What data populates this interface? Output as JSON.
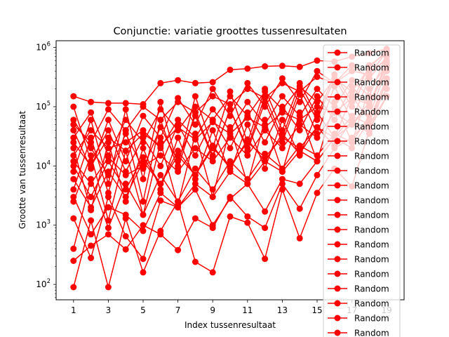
{
  "chart_data": {
    "type": "line",
    "title": "Conjunctie: variatie groottes tussenresultaten",
    "xlabel": "Index tussenresultaat",
    "ylabel": "Grootte van tussenresultaat",
    "yscale": "log",
    "xlim": [
      0.0,
      20.0
    ],
    "ylim": [
      55,
      1300000
    ],
    "xticks": [
      "1",
      "3",
      "5",
      "7",
      "9",
      "11",
      "13",
      "15",
      "17",
      "19"
    ],
    "yticks": [
      "10^2",
      "10^3",
      "10^4",
      "10^5",
      "10^6"
    ],
    "grid": false,
    "legend_position": "top-right",
    "series_color": "#ff0000",
    "series": [
      {
        "name": "Random",
        "x": [
          1,
          2,
          3,
          4,
          5,
          6,
          7,
          8,
          9,
          10,
          11,
          12,
          13,
          14,
          15,
          16,
          17,
          18,
          19
        ],
        "values": [
          150000,
          120000,
          115000,
          115000,
          110000,
          250000,
          280000,
          250000,
          260000,
          420000,
          440000,
          480000,
          490000,
          470000,
          600000,
          580000,
          700000,
          800000,
          950000
        ]
      },
      {
        "name": "Random",
        "x": [
          1,
          2,
          3,
          4,
          5,
          6,
          7,
          8,
          9,
          10,
          11,
          12,
          13,
          14,
          15,
          16,
          17,
          18,
          19
        ],
        "values": [
          90,
          1200,
          90,
          1300,
          160,
          800,
          2500,
          240,
          160,
          1400,
          1100,
          270,
          4000,
          600,
          3500,
          9000,
          4500,
          40000,
          150000
        ]
      },
      {
        "name": "Random",
        "x": [
          1,
          2,
          3,
          4,
          5,
          6,
          7,
          8,
          9,
          10,
          11,
          12,
          13,
          14,
          15,
          16,
          17,
          18,
          19
        ],
        "values": [
          250,
          450,
          700,
          390,
          1000,
          700,
          380,
          1300,
          900,
          3000,
          1400,
          900,
          5000,
          1900,
          7000,
          20000,
          30000,
          60000,
          300000
        ]
      },
      {
        "name": "Random",
        "x": [
          1,
          2,
          3,
          4,
          5,
          6,
          7,
          8,
          9,
          10,
          11,
          12,
          13,
          14,
          15,
          16,
          17,
          18,
          19
        ],
        "values": [
          1300,
          280,
          3000,
          650,
          270,
          2600,
          2000,
          4000,
          1000,
          2800,
          5000,
          1700,
          6000,
          5000,
          12000,
          30000,
          50000,
          100000,
          500000
        ]
      },
      {
        "name": "Random",
        "x": [
          1,
          2,
          3,
          4,
          5,
          6,
          7,
          8,
          9,
          10,
          11,
          12,
          13,
          14,
          15,
          16,
          17,
          18,
          19
        ],
        "values": [
          40000,
          9000,
          60000,
          12000,
          70000,
          30000,
          140000,
          50000,
          200000,
          70000,
          250000,
          100000,
          300000,
          120000,
          400000,
          250000,
          500000,
          300000,
          700000
        ]
      },
      {
        "name": "Random",
        "x": [
          1,
          2,
          3,
          4,
          5,
          6,
          7,
          8,
          9,
          10,
          11,
          12,
          13,
          14,
          15,
          16,
          17,
          18,
          19
        ],
        "values": [
          4000,
          30000,
          3500,
          40000,
          2500,
          60000,
          9000,
          80000,
          15000,
          90000,
          20000,
          150000,
          30000,
          200000,
          60000,
          300000,
          100000,
          400000,
          600000
        ]
      },
      {
        "name": "Random",
        "x": [
          1,
          2,
          3,
          4,
          5,
          6,
          7,
          8,
          9,
          10,
          11,
          12,
          13,
          14,
          15,
          16,
          17,
          18,
          19
        ],
        "values": [
          20000,
          1800,
          25000,
          2500,
          20000,
          4000,
          30000,
          6000,
          40000,
          8000,
          50000,
          9000,
          60000,
          15000,
          80000,
          30000,
          150000,
          60000,
          250000
        ]
      },
      {
        "name": "Random",
        "x": [
          1,
          2,
          3,
          4,
          5,
          6,
          7,
          8,
          9,
          10,
          11,
          12,
          13,
          14,
          15,
          16,
          17,
          18,
          19
        ],
        "values": [
          8000,
          60000,
          5000,
          90000,
          6000,
          120000,
          10000,
          150000,
          20000,
          180000,
          25000,
          200000,
          40000,
          250000,
          70000,
          350000,
          120000,
          500000,
          800000
        ]
      },
      {
        "name": "Random",
        "x": [
          1,
          2,
          3,
          4,
          5,
          6,
          7,
          8,
          9,
          10,
          11,
          12,
          13,
          14,
          15,
          16,
          17,
          18,
          19
        ],
        "values": [
          12000,
          5000,
          14000,
          7000,
          10000,
          15000,
          8000,
          20000,
          12000,
          30000,
          15000,
          40000,
          20000,
          50000,
          30000,
          80000,
          50000,
          120000,
          400000
        ]
      },
      {
        "name": "Random",
        "x": [
          1,
          2,
          3,
          4,
          5,
          6,
          7,
          8,
          9,
          10,
          11,
          12,
          13,
          14,
          15,
          16,
          17,
          18,
          19
        ],
        "values": [
          60000,
          20000,
          7000,
          35000,
          9000,
          45000,
          12000,
          70000,
          14000,
          90000,
          18000,
          120000,
          25000,
          160000,
          35000,
          220000,
          60000,
          300000,
          700000
        ]
      },
      {
        "name": "Random",
        "x": [
          1,
          2,
          3,
          4,
          5,
          6,
          7,
          8,
          9,
          10,
          11,
          12,
          13,
          14,
          15,
          16,
          17,
          18,
          19
        ],
        "values": [
          2500,
          15000,
          1200,
          18000,
          1500,
          25000,
          2200,
          35000,
          3000,
          45000,
          5000,
          60000,
          8000,
          80000,
          12000,
          120000,
          25000,
          200000,
          500000
        ]
      },
      {
        "name": "Random",
        "x": [
          1,
          2,
          3,
          4,
          5,
          6,
          7,
          8,
          9,
          10,
          11,
          12,
          13,
          14,
          15,
          16,
          17,
          18,
          19
        ],
        "values": [
          30000,
          80000,
          15000,
          60000,
          25000,
          90000,
          40000,
          100000,
          60000,
          150000,
          70000,
          180000,
          90000,
          220000,
          120000,
          300000,
          180000,
          450000,
          900000
        ]
      },
      {
        "name": "Random",
        "x": [
          1,
          2,
          3,
          4,
          5,
          6,
          7,
          8,
          9,
          10,
          11,
          12,
          13,
          14,
          15,
          16,
          17,
          18,
          19
        ],
        "values": [
          6000,
          2000,
          8000,
          3000,
          12000,
          5000,
          15000,
          7000,
          20000,
          10000,
          25000,
          14000,
          30000,
          20000,
          45000,
          30000,
          70000,
          50000,
          150000
        ]
      },
      {
        "name": "Random",
        "x": [
          1,
          2,
          3,
          4,
          5,
          6,
          7,
          8,
          9,
          10,
          11,
          12,
          13,
          14,
          15,
          16,
          17,
          18,
          19
        ],
        "values": [
          100000,
          12000,
          40000,
          8000,
          30000,
          10000,
          50000,
          15000,
          60000,
          20000,
          80000,
          25000,
          100000,
          40000,
          150000,
          60000,
          220000,
          100000,
          600000
        ]
      },
      {
        "name": "Random",
        "x": [
          1,
          2,
          3,
          4,
          5,
          6,
          7,
          8,
          9,
          10,
          11,
          12,
          13,
          14,
          15,
          16,
          17,
          18,
          19
        ],
        "values": [
          15000,
          40000,
          20000,
          25000,
          40000,
          20000,
          60000,
          30000,
          90000,
          40000,
          120000,
          50000,
          150000,
          70000,
          200000,
          100000,
          280000,
          150000,
          750000
        ]
      },
      {
        "name": "Random",
        "x": [
          1,
          2,
          3,
          4,
          5,
          6,
          7,
          8,
          9,
          10,
          11,
          12,
          13,
          14,
          15,
          16,
          17,
          18,
          19
        ],
        "values": [
          3000,
          700,
          2000,
          1500,
          800,
          3500,
          2000,
          5000,
          3000,
          8000,
          5000,
          12000,
          8000,
          18000,
          12000,
          30000,
          20000,
          60000,
          200000
        ]
      },
      {
        "name": "Random",
        "x": [
          1,
          2,
          3,
          4,
          5,
          6,
          7,
          8,
          9,
          10,
          11,
          12,
          13,
          14,
          15,
          16,
          17,
          18,
          19
        ],
        "values": [
          50000,
          25000,
          90000,
          40000,
          100000,
          60000,
          120000,
          80000,
          150000,
          110000,
          200000,
          140000,
          250000,
          180000,
          320000,
          250000,
          400000,
          350000,
          850000
        ]
      },
      {
        "name": "Random",
        "x": [
          1,
          2,
          3,
          4,
          5,
          6,
          7,
          8,
          9,
          10,
          11,
          12,
          13,
          14,
          15,
          16,
          17,
          18,
          19
        ],
        "values": [
          10000,
          3000,
          12000,
          4000,
          14000,
          5000,
          18000,
          7000,
          22000,
          9000,
          28000,
          12000,
          35000,
          16000,
          45000,
          22000,
          60000,
          35000,
          300000
        ]
      },
      {
        "name": "Random",
        "x": [
          1,
          2,
          3,
          4,
          5,
          6,
          7,
          8,
          9,
          10,
          11,
          12,
          13,
          14,
          15,
          16,
          17,
          18,
          19
        ],
        "values": [
          400,
          6000,
          900,
          5000,
          1500,
          7000,
          2500,
          9000,
          4000,
          12000,
          6000,
          16000,
          9000,
          22000,
          15000,
          35000,
          25000,
          70000,
          450000
        ]
      },
      {
        "name": "Random",
        "x": [
          1,
          2,
          3,
          4,
          5,
          6,
          7,
          8,
          9,
          10,
          11,
          12,
          13,
          14,
          15,
          16,
          17,
          18,
          19
        ],
        "values": [
          25000,
          10000,
          30000,
          18000,
          35000,
          22000,
          45000,
          28000,
          55000,
          35000,
          65000,
          45000,
          80000,
          60000,
          100000,
          80000,
          140000,
          110000,
          550000
        ]
      }
    ]
  }
}
